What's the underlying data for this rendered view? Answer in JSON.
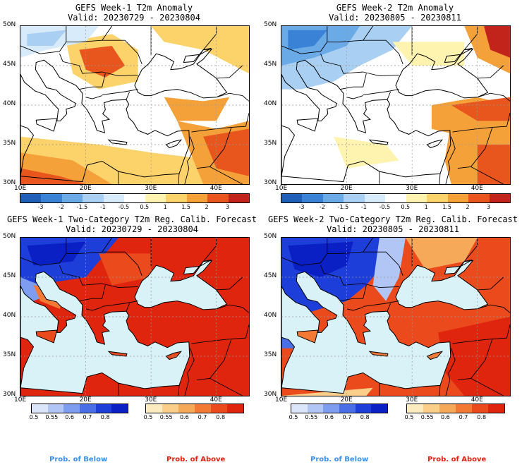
{
  "panels": {
    "p1": {
      "title1": "GEFS Week-1 T2m Anomaly",
      "title2": "Valid: 20230729 - 20230804"
    },
    "p2": {
      "title1": "GEFS Week-2 T2m Anomaly",
      "title2": "Valid: 20230805 - 20230811"
    },
    "p3": {
      "title1": "GEFS Week-1 Two-Category T2m Reg. Calib. Forecast",
      "title2": "Valid: 20230729 - 20230804"
    },
    "p4": {
      "title1": "GEFS Week-2 Two-Category T2m Reg. Calib. Forecast",
      "title2": "Valid: 20230805 - 20230811"
    }
  },
  "axes": {
    "lat_labels": [
      "50N",
      "45N",
      "40N",
      "35N",
      "30N"
    ],
    "lon_labels": [
      "10E",
      "20E",
      "30E",
      "40E"
    ]
  },
  "anomaly_colorbar": {
    "labels": [
      "-3",
      "-2",
      "-1.5",
      "-1",
      "-0.5",
      "0.5",
      "1",
      "1.5",
      "2",
      "3"
    ],
    "colors": [
      "#1f5fb8",
      "#3a82d6",
      "#6aaae6",
      "#a9d0f2",
      "#d8ebfa",
      "#ffffff",
      "#fff3b0",
      "#fcd26b",
      "#f5a13a",
      "#e8561e",
      "#c2231a"
    ]
  },
  "prob_below_colorbar": {
    "labels": [
      "0.5",
      "0.55",
      "0.6",
      "0.7",
      "0.8"
    ],
    "colors": [
      "#dbe6fb",
      "#b1c6f5",
      "#7f9df0",
      "#4a6ee6",
      "#1d3ed8",
      "#0a1fc4"
    ]
  },
  "prob_above_colorbar": {
    "labels": [
      "0.5",
      "0.55",
      "0.6",
      "0.7",
      "0.8"
    ],
    "colors": [
      "#fdebc0",
      "#fbcf8a",
      "#f7a95a",
      "#f27a35",
      "#ea4a1c",
      "#e0250f"
    ]
  },
  "footer": {
    "below_left": "Prob. of Below",
    "above_left": "Prob. of Above",
    "below_right": "Prob. of Below",
    "above_right": "Prob. of Above",
    "below_color": "#3a8fe8",
    "above_color": "#e02010"
  }
}
